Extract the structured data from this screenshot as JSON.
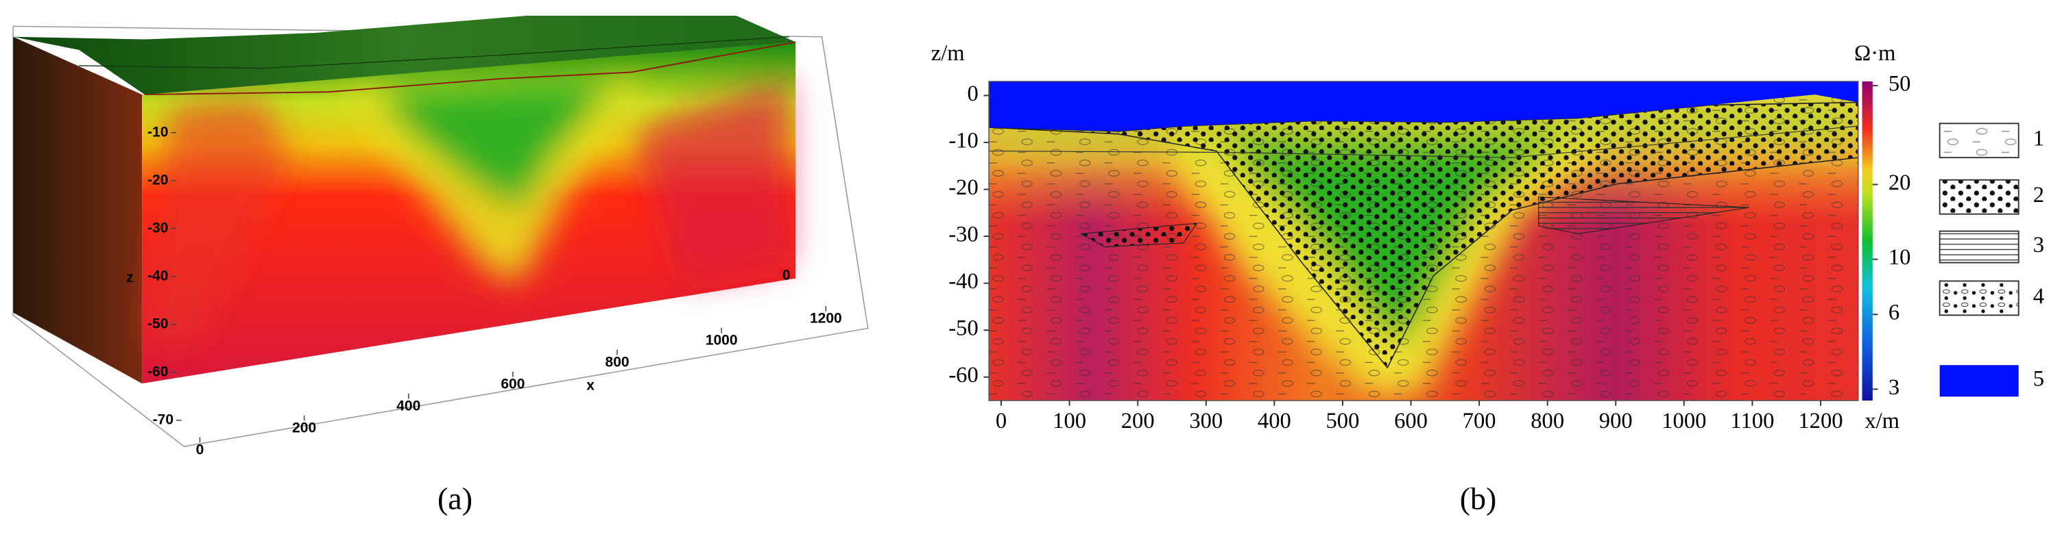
{
  "chart_data": [
    {
      "type": "block3d",
      "label": "(a)",
      "z_label": "z",
      "x_label": "x",
      "zlim": [
        -70,
        0
      ],
      "zticks": [
        -10,
        -20,
        -30,
        -40,
        -50,
        -60,
        -70
      ],
      "xlim": [
        0,
        1200
      ],
      "xticks": [
        0,
        200,
        400,
        600,
        800,
        1000,
        1200
      ],
      "yticks": [
        0
      ]
    },
    {
      "type": "section",
      "label": "(b)",
      "y_label": "z/m",
      "x_label": "x/m",
      "colorbar_label": "Ω·m",
      "xlim": [
        -18,
        1255
      ],
      "xticks": [
        0,
        100,
        200,
        300,
        400,
        500,
        600,
        700,
        800,
        900,
        1000,
        1100,
        1200
      ],
      "ylim": [
        -65,
        3
      ],
      "yticks": [
        0,
        -10,
        -20,
        -30,
        -40,
        -50,
        -60
      ],
      "clim": [
        2.7,
        52
      ],
      "cticks": [
        50,
        20,
        10,
        6,
        3
      ],
      "color_scale": "log",
      "legend": [
        "1",
        "2",
        "3",
        "4",
        "5"
      ]
    }
  ]
}
